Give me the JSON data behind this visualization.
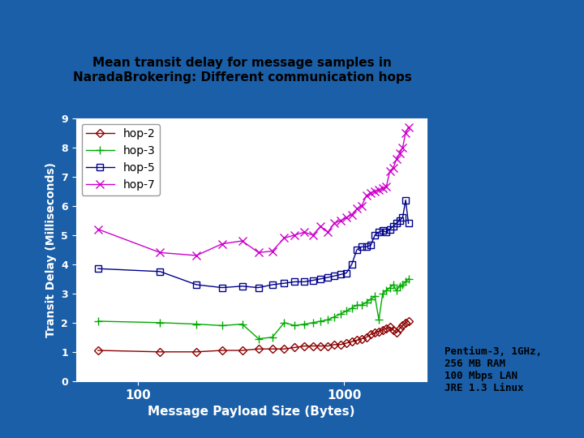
{
  "title": "Mean transit delay for message samples in\nNaradaBrokering: Different communication hops",
  "xlabel": "Message Payload Size (Bytes)",
  "ylabel": "Transit Delay (Milliseconds)",
  "bg_color": "#1a5fa8",
  "plot_bg": "#ffffff",
  "title_bg": "#d0d0d0",
  "ylim": [
    0,
    9
  ],
  "yticks": [
    0,
    1,
    2,
    3,
    4,
    5,
    6,
    7,
    8,
    9
  ],
  "annotation": "Pentium-3, 1GHz,\n256 MB RAM\n100 Mbps LAN\nJRE 1.3 Linux",
  "hop2_x": [
    64,
    128,
    192,
    256,
    320,
    384,
    448,
    512,
    576,
    640,
    704,
    768,
    832,
    896,
    960,
    1024,
    1088,
    1152,
    1216,
    1280,
    1344,
    1408,
    1472,
    1536,
    1600,
    1664,
    1728,
    1792,
    1856,
    1920,
    1984,
    2048
  ],
  "hop2_y": [
    1.05,
    1.0,
    1.0,
    1.05,
    1.05,
    1.1,
    1.1,
    1.1,
    1.15,
    1.2,
    1.2,
    1.2,
    1.2,
    1.25,
    1.25,
    1.3,
    1.35,
    1.4,
    1.45,
    1.5,
    1.6,
    1.65,
    1.7,
    1.75,
    1.8,
    1.85,
    1.75,
    1.65,
    1.8,
    1.9,
    2.0,
    2.05
  ],
  "hop3_x": [
    64,
    128,
    192,
    256,
    320,
    384,
    448,
    512,
    576,
    640,
    704,
    768,
    832,
    896,
    960,
    1024,
    1088,
    1152,
    1216,
    1280,
    1344,
    1408,
    1472,
    1536,
    1600,
    1664,
    1728,
    1792,
    1856,
    1920,
    1984,
    2048
  ],
  "hop3_y": [
    2.05,
    2.0,
    1.95,
    1.9,
    1.95,
    1.45,
    1.5,
    2.0,
    1.9,
    1.95,
    2.0,
    2.05,
    2.1,
    2.2,
    2.3,
    2.4,
    2.5,
    2.6,
    2.6,
    2.7,
    2.8,
    2.9,
    2.1,
    3.0,
    3.1,
    3.2,
    3.3,
    3.1,
    3.25,
    3.3,
    3.4,
    3.5
  ],
  "hop5_x": [
    64,
    128,
    192,
    256,
    320,
    384,
    448,
    512,
    576,
    640,
    704,
    768,
    832,
    896,
    960,
    1024,
    1088,
    1152,
    1216,
    1280,
    1344,
    1408,
    1472,
    1536,
    1600,
    1664,
    1728,
    1792,
    1856,
    1920,
    1984,
    2048
  ],
  "hop5_y": [
    3.85,
    3.75,
    3.3,
    3.2,
    3.25,
    3.2,
    3.3,
    3.35,
    3.4,
    3.4,
    3.45,
    3.5,
    3.55,
    3.6,
    3.65,
    3.7,
    4.0,
    4.5,
    4.6,
    4.6,
    4.65,
    5.0,
    5.1,
    5.15,
    5.1,
    5.2,
    5.3,
    5.4,
    5.5,
    5.6,
    6.2,
    5.4
  ],
  "hop7_x": [
    64,
    128,
    192,
    256,
    320,
    384,
    448,
    512,
    576,
    640,
    704,
    768,
    832,
    896,
    960,
    1024,
    1088,
    1152,
    1216,
    1280,
    1344,
    1408,
    1472,
    1536,
    1600,
    1664,
    1728,
    1792,
    1856,
    1920,
    1984,
    2048
  ],
  "hop7_y": [
    5.2,
    4.4,
    4.3,
    4.7,
    4.8,
    4.4,
    4.45,
    4.9,
    5.0,
    5.1,
    5.0,
    5.3,
    5.1,
    5.4,
    5.5,
    5.6,
    5.7,
    5.9,
    6.0,
    6.35,
    6.45,
    6.5,
    6.55,
    6.6,
    6.65,
    7.2,
    7.3,
    7.6,
    7.8,
    8.0,
    8.5,
    8.7
  ],
  "hop2_color": "#8b0000",
  "hop3_color": "#00aa00",
  "hop5_color": "#00008b",
  "hop7_color": "#cc00cc"
}
